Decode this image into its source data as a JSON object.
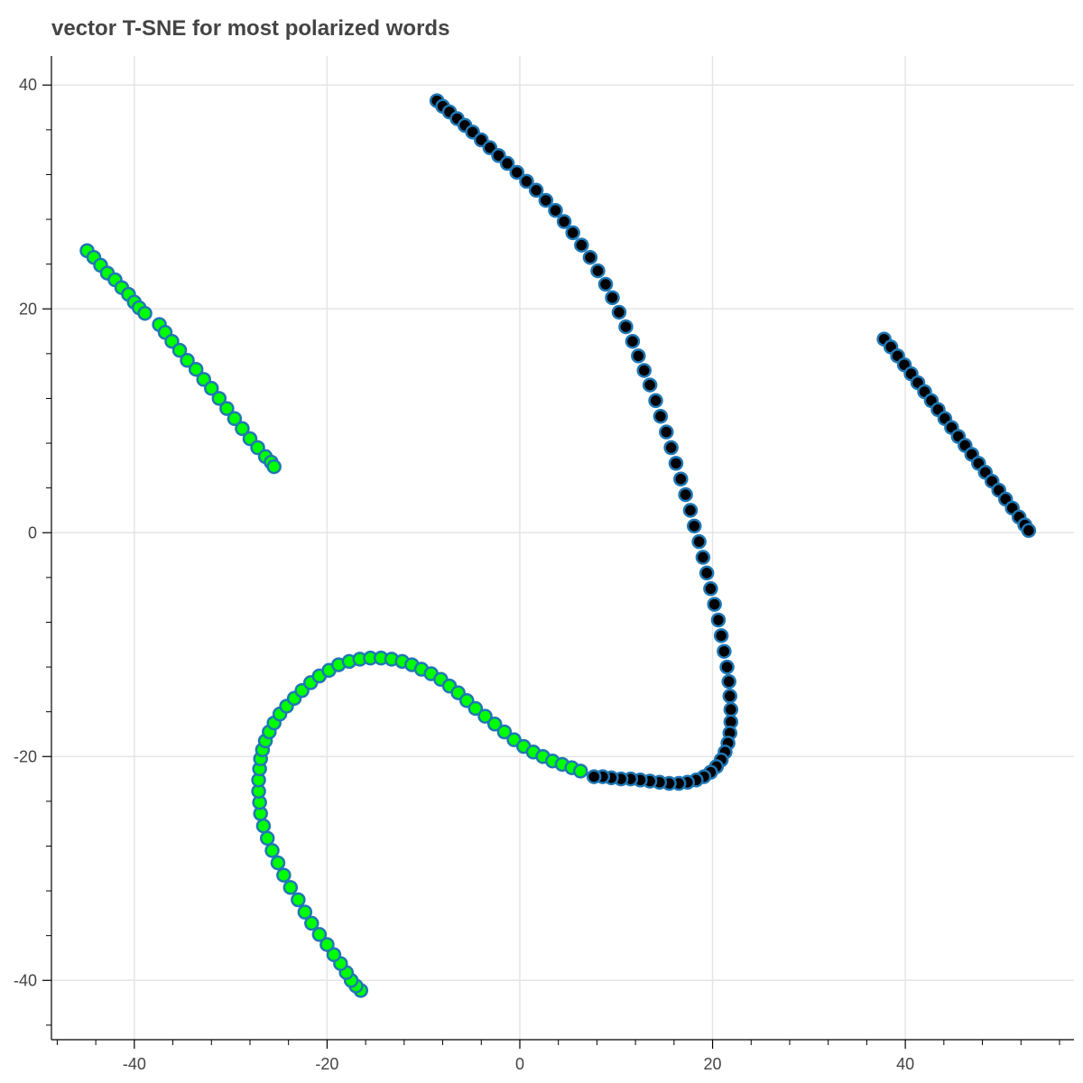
{
  "chart_data": {
    "type": "scatter",
    "title": "vector T-SNE for most polarized words",
    "xlabel": "",
    "ylabel": "",
    "xlim": [
      -48.6,
      57.5
    ],
    "ylim": [
      -45.3,
      42.6
    ],
    "grid": true,
    "legend": "none",
    "x_ticks": [
      -40,
      -20,
      0,
      20,
      40
    ],
    "y_ticks": [
      40,
      20,
      0,
      -20,
      -40
    ],
    "x_tick_labels": [
      "-40",
      "-20",
      "0",
      "20",
      "40"
    ],
    "y_tick_labels": [
      "40",
      "20",
      "0",
      "-20",
      "-40"
    ],
    "marker_outline_color": "#1f77b4",
    "series": [
      {
        "fill": "#00ff00",
        "x": [
          -44.9,
          -44.2,
          -43.5,
          -42.8,
          -42.0,
          -41.3,
          -40.6,
          -40.0,
          -39.5,
          -38.9,
          -37.4,
          -36.8,
          -36.1,
          -35.3,
          -34.5,
          -33.6,
          -32.8,
          -32.0,
          -31.2,
          -30.4,
          -29.6,
          -28.8,
          -28.0,
          -27.2,
          -26.4,
          -25.8,
          -25.5,
          -16.5,
          -17.0,
          -17.5,
          -18.0,
          -18.6,
          -19.3,
          -20.0,
          -20.8,
          -21.6,
          -22.3,
          -23.0,
          -23.8,
          -24.5,
          -25.1,
          -25.7,
          -26.2,
          -26.6,
          -26.9,
          -27.0,
          -27.1,
          -27.1,
          -27.0,
          -26.9,
          -26.7,
          -26.4,
          -26.0,
          -25.5,
          -24.9,
          -24.2,
          -23.4,
          -22.6,
          -21.7,
          -20.8,
          -19.8,
          -18.8,
          -17.7,
          -16.6,
          -15.5,
          -14.4,
          -13.3,
          -12.2,
          -11.2,
          -10.2,
          -9.2,
          -8.2,
          -7.3,
          -6.4,
          -5.5,
          -4.6,
          -3.6,
          -2.6,
          -1.6,
          -0.6,
          0.4,
          1.4,
          2.4,
          3.4,
          4.4,
          5.4,
          6.3
        ],
        "y": [
          25.2,
          24.6,
          23.9,
          23.2,
          22.6,
          21.9,
          21.3,
          20.6,
          20.1,
          19.6,
          18.6,
          17.9,
          17.1,
          16.3,
          15.4,
          14.6,
          13.7,
          12.9,
          12.0,
          11.1,
          10.2,
          9.3,
          8.4,
          7.6,
          6.8,
          6.3,
          5.9,
          -40.9,
          -40.5,
          -40.0,
          -39.3,
          -38.5,
          -37.7,
          -36.8,
          -35.9,
          -34.9,
          -33.9,
          -32.8,
          -31.7,
          -30.6,
          -29.5,
          -28.4,
          -27.3,
          -26.2,
          -25.1,
          -24.1,
          -23.1,
          -22.1,
          -21.1,
          -20.2,
          -19.4,
          -18.6,
          -17.8,
          -17.0,
          -16.2,
          -15.5,
          -14.8,
          -14.1,
          -13.4,
          -12.8,
          -12.3,
          -11.8,
          -11.5,
          -11.3,
          -11.2,
          -11.2,
          -11.3,
          -11.5,
          -11.8,
          -12.2,
          -12.6,
          -13.1,
          -13.7,
          -14.3,
          -15.0,
          -15.7,
          -16.4,
          -17.1,
          -17.8,
          -18.5,
          -19.1,
          -19.6,
          -20.0,
          -20.4,
          -20.7,
          -21.0,
          -21.3
        ]
      },
      {
        "fill": "#000000",
        "x": [
          -8.6,
          -8.0,
          -7.3,
          -6.5,
          -5.7,
          -4.9,
          -4.0,
          -3.1,
          -2.2,
          -1.3,
          -0.3,
          0.7,
          1.7,
          2.7,
          3.7,
          4.6,
          5.5,
          6.4,
          7.3,
          8.1,
          8.9,
          9.6,
          10.3,
          11.0,
          11.7,
          12.3,
          12.9,
          13.5,
          14.1,
          14.6,
          15.2,
          15.7,
          16.2,
          16.7,
          17.2,
          17.7,
          18.1,
          18.6,
          19.0,
          19.4,
          19.8,
          20.2,
          20.6,
          20.9,
          21.2,
          21.5,
          21.7,
          21.8,
          21.9,
          21.9,
          21.8,
          21.6,
          21.3,
          20.9,
          20.4,
          19.8,
          19.1,
          18.3,
          17.4,
          16.5,
          15.5,
          14.5,
          13.5,
          12.5,
          11.5,
          10.5,
          9.5,
          8.6,
          7.7,
          37.8,
          38.5,
          39.2,
          39.9,
          40.6,
          41.3,
          42.0,
          42.7,
          43.4,
          44.1,
          44.8,
          45.5,
          46.2,
          46.9,
          47.6,
          48.3,
          49.0,
          49.7,
          50.4,
          51.1,
          51.8,
          52.4,
          52.8
        ],
        "y": [
          38.6,
          38.1,
          37.6,
          37.0,
          36.4,
          35.8,
          35.1,
          34.4,
          33.7,
          33.0,
          32.2,
          31.4,
          30.6,
          29.7,
          28.8,
          27.8,
          26.8,
          25.7,
          24.6,
          23.4,
          22.2,
          21.0,
          19.7,
          18.4,
          17.1,
          15.8,
          14.5,
          13.2,
          11.8,
          10.4,
          9.0,
          7.6,
          6.2,
          4.8,
          3.4,
          2.0,
          0.6,
          -0.8,
          -2.2,
          -3.6,
          -5.0,
          -6.4,
          -7.8,
          -9.2,
          -10.6,
          -12.0,
          -13.3,
          -14.6,
          -15.8,
          -16.9,
          -17.9,
          -18.8,
          -19.6,
          -20.3,
          -20.9,
          -21.4,
          -21.8,
          -22.1,
          -22.3,
          -22.4,
          -22.4,
          -22.3,
          -22.2,
          -22.1,
          -22.0,
          -22.0,
          -21.9,
          -21.8,
          -21.8,
          17.3,
          16.6,
          15.8,
          15.0,
          14.2,
          13.4,
          12.6,
          11.8,
          11.0,
          10.2,
          9.4,
          8.6,
          7.8,
          7.0,
          6.2,
          5.4,
          4.6,
          3.8,
          3.0,
          2.2,
          1.4,
          0.7,
          0.2
        ]
      }
    ]
  }
}
